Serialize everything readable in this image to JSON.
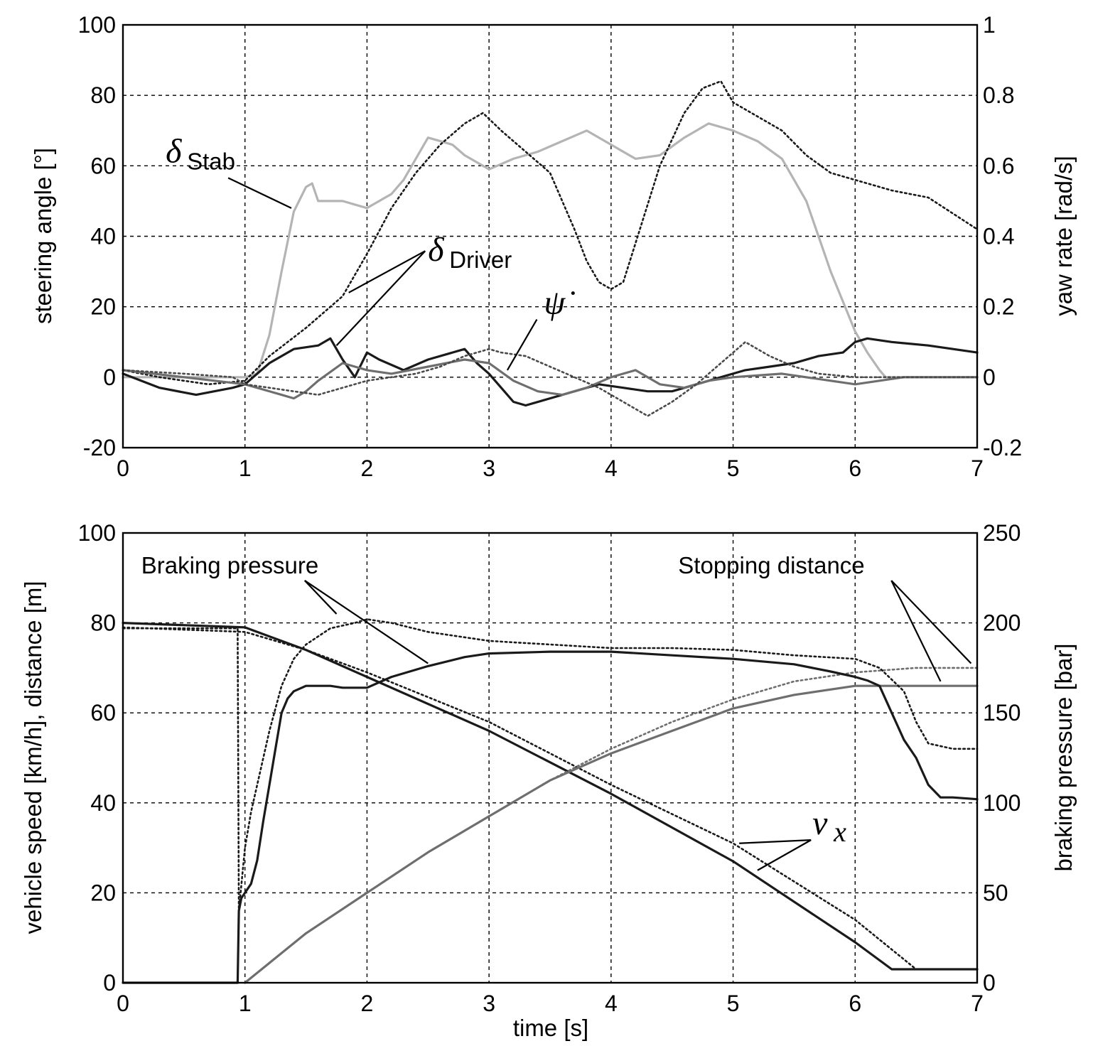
{
  "chart_data": [
    {
      "type": "line",
      "xlabel": "",
      "ylabel": "steering angle [°]",
      "ylabel_right": "yaw rate [rad/s]",
      "xlim": [
        0,
        7
      ],
      "ylim": [
        -20,
        100
      ],
      "ylim_right": [
        -0.2,
        1
      ],
      "xticks": [
        "0",
        "1",
        "2",
        "3",
        "4",
        "5",
        "6",
        "7"
      ],
      "yticks": [
        "100",
        "80",
        "60",
        "40",
        "20",
        "0",
        "-20"
      ],
      "yticks_right": [
        "1",
        "0.8",
        "0.6",
        "0.4",
        "0.2",
        "0",
        "-0.2"
      ],
      "grid": true,
      "annotations": [
        {
          "symbol": "δ",
          "sub": "Stab",
          "text_x": 0.35,
          "text_y": 61,
          "targets": [
            [
              1.38,
              48
            ]
          ]
        },
        {
          "symbol": "δ",
          "sub": "Driver",
          "text_x": 2.5,
          "text_y": 33,
          "targets": [
            [
              1.85,
              24
            ],
            [
              1.75,
              9
            ]
          ]
        },
        {
          "symbol": "ψ̇",
          "sub": "",
          "text_x": 3.45,
          "text_y": 18,
          "targets": [
            [
              3.15,
              2
            ]
          ]
        }
      ],
      "series": [
        {
          "color": "#b4b4b4",
          "dash": "solid",
          "axis": "left",
          "x": [
            0,
            0.5,
            0.8,
            1.0,
            1.1,
            1.2,
            1.3,
            1.4,
            1.5,
            1.55,
            1.6,
            1.8,
            2.0,
            2.1,
            2.2,
            2.3,
            2.4,
            2.5,
            2.6,
            2.7,
            2.8,
            2.9,
            3.0,
            3.2,
            3.4,
            3.6,
            3.8,
            4.0,
            4.2,
            4.4,
            4.6,
            4.8,
            5.0,
            5.2,
            5.4,
            5.6,
            5.8,
            6.0,
            6.1,
            6.2,
            6.25,
            6.3,
            6.6,
            7.0
          ],
          "y": [
            0,
            0,
            0,
            0,
            1,
            12,
            30,
            47,
            54,
            55,
            50,
            50,
            48,
            50,
            52,
            56,
            62,
            68,
            67,
            66,
            63,
            61,
            59,
            62,
            64,
            67,
            70,
            66,
            62,
            63,
            68,
            72,
            70,
            67,
            62,
            50,
            30,
            13,
            7,
            2,
            0,
            0,
            0,
            0
          ]
        },
        {
          "color": "#1a1a1a",
          "dash": "dotted",
          "axis": "right",
          "x": [
            0,
            0.3,
            0.7,
            1.0,
            1.2,
            1.5,
            1.8,
            2.0,
            2.2,
            2.4,
            2.6,
            2.8,
            2.95,
            3.1,
            3.3,
            3.5,
            3.7,
            3.8,
            3.9,
            4.0,
            4.1,
            4.2,
            4.4,
            4.6,
            4.75,
            4.9,
            5.0,
            5.2,
            5.4,
            5.6,
            5.8,
            6.0,
            6.3,
            6.6,
            7.0
          ],
          "y": [
            0.02,
            0.0,
            -0.02,
            -0.01,
            0.06,
            0.14,
            0.23,
            0.35,
            0.48,
            0.58,
            0.66,
            0.72,
            0.75,
            0.7,
            0.64,
            0.58,
            0.42,
            0.33,
            0.27,
            0.25,
            0.27,
            0.38,
            0.6,
            0.75,
            0.82,
            0.84,
            0.78,
            0.74,
            0.7,
            0.63,
            0.58,
            0.56,
            0.53,
            0.51,
            0.42
          ]
        },
        {
          "color": "#1a1a1a",
          "dash": "solid",
          "axis": "left",
          "x": [
            0,
            0.3,
            0.6,
            0.9,
            1.0,
            1.2,
            1.4,
            1.6,
            1.7,
            1.8,
            1.9,
            2.0,
            2.1,
            2.3,
            2.5,
            2.7,
            2.8,
            2.9,
            3.0,
            3.1,
            3.2,
            3.3,
            3.5,
            3.7,
            3.9,
            4.1,
            4.3,
            4.5,
            4.7,
            4.9,
            5.1,
            5.3,
            5.5,
            5.7,
            5.9,
            6.0,
            6.1,
            6.3,
            6.6,
            7.0
          ],
          "y": [
            1,
            -3,
            -5,
            -3,
            -2,
            4,
            8,
            9,
            11,
            5,
            0,
            7,
            5,
            2,
            5,
            7,
            8,
            4,
            1,
            -3,
            -7,
            -8,
            -6,
            -4,
            -2,
            -3,
            -4,
            -4,
            -2,
            0,
            2,
            3,
            4,
            6,
            7,
            10,
            11,
            10,
            9,
            7
          ]
        },
        {
          "color": "#6e6e6e",
          "dash": "solid",
          "axis": "right",
          "x": [
            0,
            0.5,
            1.0,
            1.3,
            1.4,
            1.5,
            1.6,
            1.8,
            2.0,
            2.2,
            2.5,
            2.8,
            3.0,
            3.2,
            3.4,
            3.6,
            3.8,
            4.0,
            4.2,
            4.4,
            4.6,
            4.8,
            5.0,
            5.4,
            5.8,
            6.0,
            6.4,
            7.0
          ],
          "y": [
            0.02,
            0.0,
            -0.02,
            -0.05,
            -0.06,
            -0.04,
            -0.01,
            0.04,
            0.02,
            0.01,
            0.03,
            0.05,
            0.04,
            -0.01,
            -0.04,
            -0.05,
            -0.03,
            0.0,
            0.02,
            -0.02,
            -0.03,
            -0.01,
            0.0,
            0.01,
            -0.01,
            -0.02,
            0.0,
            0.0
          ]
        },
        {
          "color": "#4a4a4a",
          "dash": "dotted",
          "axis": "left",
          "x": [
            0,
            0.5,
            0.9,
            1.0,
            1.2,
            1.4,
            1.6,
            1.8,
            2.0,
            2.2,
            2.4,
            2.6,
            2.8,
            3.0,
            3.1,
            3.3,
            3.5,
            3.7,
            3.9,
            4.1,
            4.3,
            4.5,
            4.7,
            4.9,
            5.1,
            5.3,
            5.5,
            5.7,
            6.0,
            6.5,
            7.0
          ],
          "y": [
            2,
            1,
            0,
            -2,
            -3,
            -4,
            -5,
            -3,
            -1,
            0,
            1,
            3,
            6,
            8,
            7,
            6,
            3,
            0,
            -3,
            -7,
            -11,
            -7,
            -2,
            4,
            10,
            6,
            3,
            1,
            0,
            0,
            0
          ]
        }
      ]
    },
    {
      "type": "line",
      "xlabel": "time [s]",
      "ylabel": "vehicle speed [km/h], distance [m]",
      "ylabel_right": "braking pressure [bar]",
      "xlim": [
        0,
        7
      ],
      "ylim": [
        0,
        100
      ],
      "ylim_right": [
        0,
        250
      ],
      "xticks": [
        "0",
        "1",
        "2",
        "3",
        "4",
        "5",
        "6",
        "7"
      ],
      "yticks": [
        "100",
        "80",
        "60",
        "40",
        "20",
        "0"
      ],
      "yticks_right": [
        "250",
        "200",
        "150",
        "100",
        "50",
        "0"
      ],
      "grid": true,
      "annotations": [
        {
          "text": "Braking pressure",
          "text_x": 0.15,
          "text_y": 91,
          "targets": [
            [
              1.75,
              82
            ],
            [
              2.5,
              71
            ]
          ]
        },
        {
          "text": "Stopping distance",
          "text_x": 4.55,
          "text_y": 91,
          "targets": [
            [
              6.7,
              67
            ],
            [
              6.95,
              71
            ]
          ]
        },
        {
          "symbol": "v",
          "sub": "x",
          "text_x": 5.65,
          "text_y": 33,
          "targets": [
            [
              5.05,
              31
            ],
            [
              5.2,
              25
            ]
          ]
        }
      ],
      "series": [
        {
          "color": "#1a1a1a",
          "dash": "solid",
          "axis": "left",
          "x": [
            0,
            1.0,
            1.5,
            2.0,
            3.0,
            4.0,
            5.0,
            6.0,
            6.3,
            7.0
          ],
          "y": [
            80,
            79,
            74,
            68,
            56,
            42,
            27,
            9,
            3,
            3
          ]
        },
        {
          "color": "#1a1a1a",
          "dash": "dotted",
          "axis": "left",
          "x": [
            0,
            1.0,
            1.5,
            2.0,
            3.0,
            4.0,
            5.0,
            6.0,
            6.5,
            7.0
          ],
          "y": [
            79,
            78,
            74,
            69,
            58,
            44,
            31,
            14,
            3,
            3
          ]
        },
        {
          "color": "#6e6e6e",
          "dash": "solid",
          "axis": "left",
          "x": [
            1.0,
            1.5,
            2.0,
            2.5,
            3.0,
            3.5,
            4.0,
            4.5,
            5.0,
            5.5,
            6.0,
            6.2,
            7.0
          ],
          "y": [
            0,
            11,
            20,
            29,
            37,
            45,
            51,
            56,
            61,
            64,
            66,
            66,
            66
          ]
        },
        {
          "color": "#6e6e6e",
          "dash": "dotted",
          "axis": "left",
          "x": [
            1.0,
            1.5,
            2.0,
            2.5,
            3.0,
            3.5,
            4.0,
            4.5,
            5.0,
            5.5,
            6.0,
            6.5,
            7.0
          ],
          "y": [
            0,
            11,
            20,
            29,
            37,
            45,
            52,
            58,
            63,
            67,
            69,
            70,
            70
          ]
        },
        {
          "color": "#1a1a1a",
          "dash": "solid",
          "axis": "right",
          "x": [
            0,
            0.94,
            0.95,
            0.97,
            1.05,
            1.1,
            1.15,
            1.2,
            1.25,
            1.3,
            1.35,
            1.4,
            1.5,
            1.7,
            1.8,
            2.0,
            2.2,
            2.5,
            2.8,
            3.0,
            3.5,
            4.0,
            4.5,
            5.0,
            5.5,
            5.8,
            6.0,
            6.1,
            6.2,
            6.3,
            6.4,
            6.5,
            6.6,
            6.7,
            6.8,
            7.0
          ],
          "y": [
            0,
            0,
            40,
            47,
            55,
            68,
            90,
            110,
            130,
            150,
            158,
            162,
            165,
            165,
            164,
            164,
            170,
            176,
            181,
            183,
            184,
            184,
            182,
            180,
            177,
            173,
            170,
            168,
            165,
            150,
            135,
            125,
            110,
            103,
            103,
            102
          ]
        },
        {
          "color": "#1a1a1a",
          "dash": "dotted",
          "axis": "right",
          "x": [
            0,
            0.94,
            0.95,
            1.0,
            1.05,
            1.1,
            1.15,
            1.2,
            1.3,
            1.4,
            1.5,
            1.7,
            1.9,
            2.0,
            2.2,
            2.5,
            3.0,
            3.5,
            4.0,
            4.5,
            5.0,
            5.5,
            6.0,
            6.2,
            6.4,
            6.5,
            6.6,
            6.8,
            7.0
          ],
          "y": [
            197,
            197,
            40,
            75,
            95,
            110,
            125,
            140,
            165,
            180,
            188,
            197,
            200,
            202,
            200,
            195,
            190,
            188,
            186,
            186,
            185,
            182,
            180,
            175,
            162,
            145,
            133,
            130,
            130
          ]
        }
      ]
    }
  ]
}
